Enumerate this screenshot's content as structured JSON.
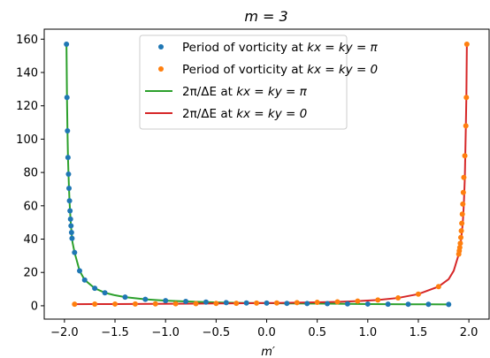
{
  "chart_data": {
    "type": "scatter",
    "title": "m = 3",
    "xlabel": "m′",
    "ylabel": "",
    "xlim": [
      -2.2,
      2.2
    ],
    "ylim": [
      -8,
      166
    ],
    "xticks": [
      -2.0,
      -1.5,
      -1.0,
      -0.5,
      0.0,
      0.5,
      1.0,
      1.5,
      2.0
    ],
    "xtick_labels": [
      "−2.0",
      "−1.5",
      "−1.0",
      "−0.5",
      "0.0",
      "0.5",
      "1.0",
      "1.5",
      "2.0"
    ],
    "yticks": [
      0,
      20,
      40,
      60,
      80,
      100,
      120,
      140,
      160
    ],
    "ytick_labels": [
      "0",
      "20",
      "40",
      "60",
      "80",
      "100",
      "120",
      "140",
      "160"
    ],
    "grid": false,
    "legend_position": "top-center",
    "series": [
      {
        "name": "Period of vorticity at kx = ky = π",
        "legend_prefix": "Period of vorticity at ",
        "legend_math": "kx = ky = π",
        "kind": "scatter",
        "color": "#1f77b4",
        "x": [
          -1.98,
          -1.975,
          -1.97,
          -1.965,
          -1.96,
          -1.955,
          -1.95,
          -1.945,
          -1.94,
          -1.935,
          -1.93,
          -1.925,
          -1.9,
          -1.85,
          -1.8,
          -1.7,
          -1.6,
          -1.4,
          -1.2,
          -1.0,
          -0.8,
          -0.6,
          -0.4,
          -0.2,
          0.0,
          0.2,
          0.4,
          0.6,
          0.8,
          1.0,
          1.2,
          1.4,
          1.6,
          1.8
        ],
        "y": [
          157.0,
          125.0,
          105.0,
          89.0,
          79.0,
          70.5,
          63.0,
          57.0,
          52.0,
          48.0,
          44.0,
          40.5,
          32.0,
          21.0,
          15.5,
          10.5,
          7.8,
          5.2,
          3.9,
          3.1,
          2.6,
          2.2,
          1.9,
          1.7,
          1.6,
          1.45,
          1.35,
          1.25,
          1.15,
          1.05,
          0.98,
          0.92,
          0.86,
          0.82
        ]
      },
      {
        "name": "Period of vorticity at kx = ky = 0",
        "legend_prefix": "Period of vorticity at ",
        "legend_math": "kx = ky = 0",
        "kind": "scatter",
        "color": "#ff7f0e",
        "x": [
          -1.9,
          -1.7,
          -1.5,
          -1.3,
          -1.1,
          -0.9,
          -0.7,
          -0.5,
          -0.3,
          -0.1,
          0.1,
          0.3,
          0.5,
          0.7,
          0.9,
          1.1,
          1.3,
          1.5,
          1.7,
          1.9,
          1.905,
          1.91,
          1.915,
          1.92,
          1.925,
          1.93,
          1.935,
          1.94,
          1.945,
          1.95,
          1.96,
          1.97,
          1.975,
          1.98
        ],
        "y": [
          0.95,
          1.0,
          1.05,
          1.1,
          1.15,
          1.22,
          1.3,
          1.4,
          1.5,
          1.6,
          1.7,
          1.85,
          2.05,
          2.35,
          2.8,
          3.5,
          4.7,
          7.0,
          11.5,
          31.0,
          33.0,
          35.0,
          37.5,
          41.0,
          45.0,
          49.5,
          55.0,
          61.0,
          68.0,
          77.0,
          90.0,
          108.0,
          125.0,
          157.0
        ]
      },
      {
        "name": "2π/ΔE at kx = ky = π",
        "legend_prefix": "2π/ΔE at ",
        "legend_math": "kx = ky = π",
        "kind": "line",
        "color": "#2ca02c",
        "x": [
          -1.98,
          -1.975,
          -1.97,
          -1.965,
          -1.96,
          -1.955,
          -1.95,
          -1.94,
          -1.93,
          -1.92,
          -1.9,
          -1.85,
          -1.8,
          -1.7,
          -1.6,
          -1.5,
          -1.4,
          -1.2,
          -1.0,
          -0.8,
          -0.6,
          -0.4,
          -0.2,
          0.0,
          0.2,
          0.4,
          0.6,
          0.8,
          1.0,
          1.2,
          1.4,
          1.6,
          1.8
        ],
        "y": [
          157.0,
          125.0,
          105.0,
          89.0,
          79.0,
          70.5,
          63.0,
          52.0,
          44.0,
          38.0,
          32.0,
          21.0,
          15.5,
          10.5,
          7.8,
          6.3,
          5.2,
          3.9,
          3.1,
          2.6,
          2.2,
          1.9,
          1.7,
          1.6,
          1.45,
          1.35,
          1.25,
          1.15,
          1.05,
          0.98,
          0.92,
          0.86,
          0.82
        ]
      },
      {
        "name": "2π/ΔE at kx = ky = 0",
        "legend_prefix": "2π/ΔE at ",
        "legend_math": "kx = ky = 0",
        "kind": "line",
        "color": "#d62728",
        "x": [
          -1.9,
          -1.7,
          -1.5,
          -1.3,
          -1.1,
          -0.9,
          -0.7,
          -0.5,
          -0.3,
          -0.1,
          0.1,
          0.3,
          0.5,
          0.7,
          0.9,
          1.1,
          1.3,
          1.5,
          1.7,
          1.8,
          1.85,
          1.9,
          1.92,
          1.94,
          1.95,
          1.96,
          1.97,
          1.975,
          1.98
        ],
        "y": [
          0.95,
          1.0,
          1.05,
          1.1,
          1.15,
          1.22,
          1.3,
          1.4,
          1.5,
          1.6,
          1.7,
          1.85,
          2.05,
          2.35,
          2.8,
          3.5,
          4.7,
          7.0,
          11.5,
          16.0,
          21.0,
          31.0,
          38.0,
          50.0,
          61.0,
          77.0,
          108.0,
          125.0,
          157.0
        ]
      }
    ]
  }
}
